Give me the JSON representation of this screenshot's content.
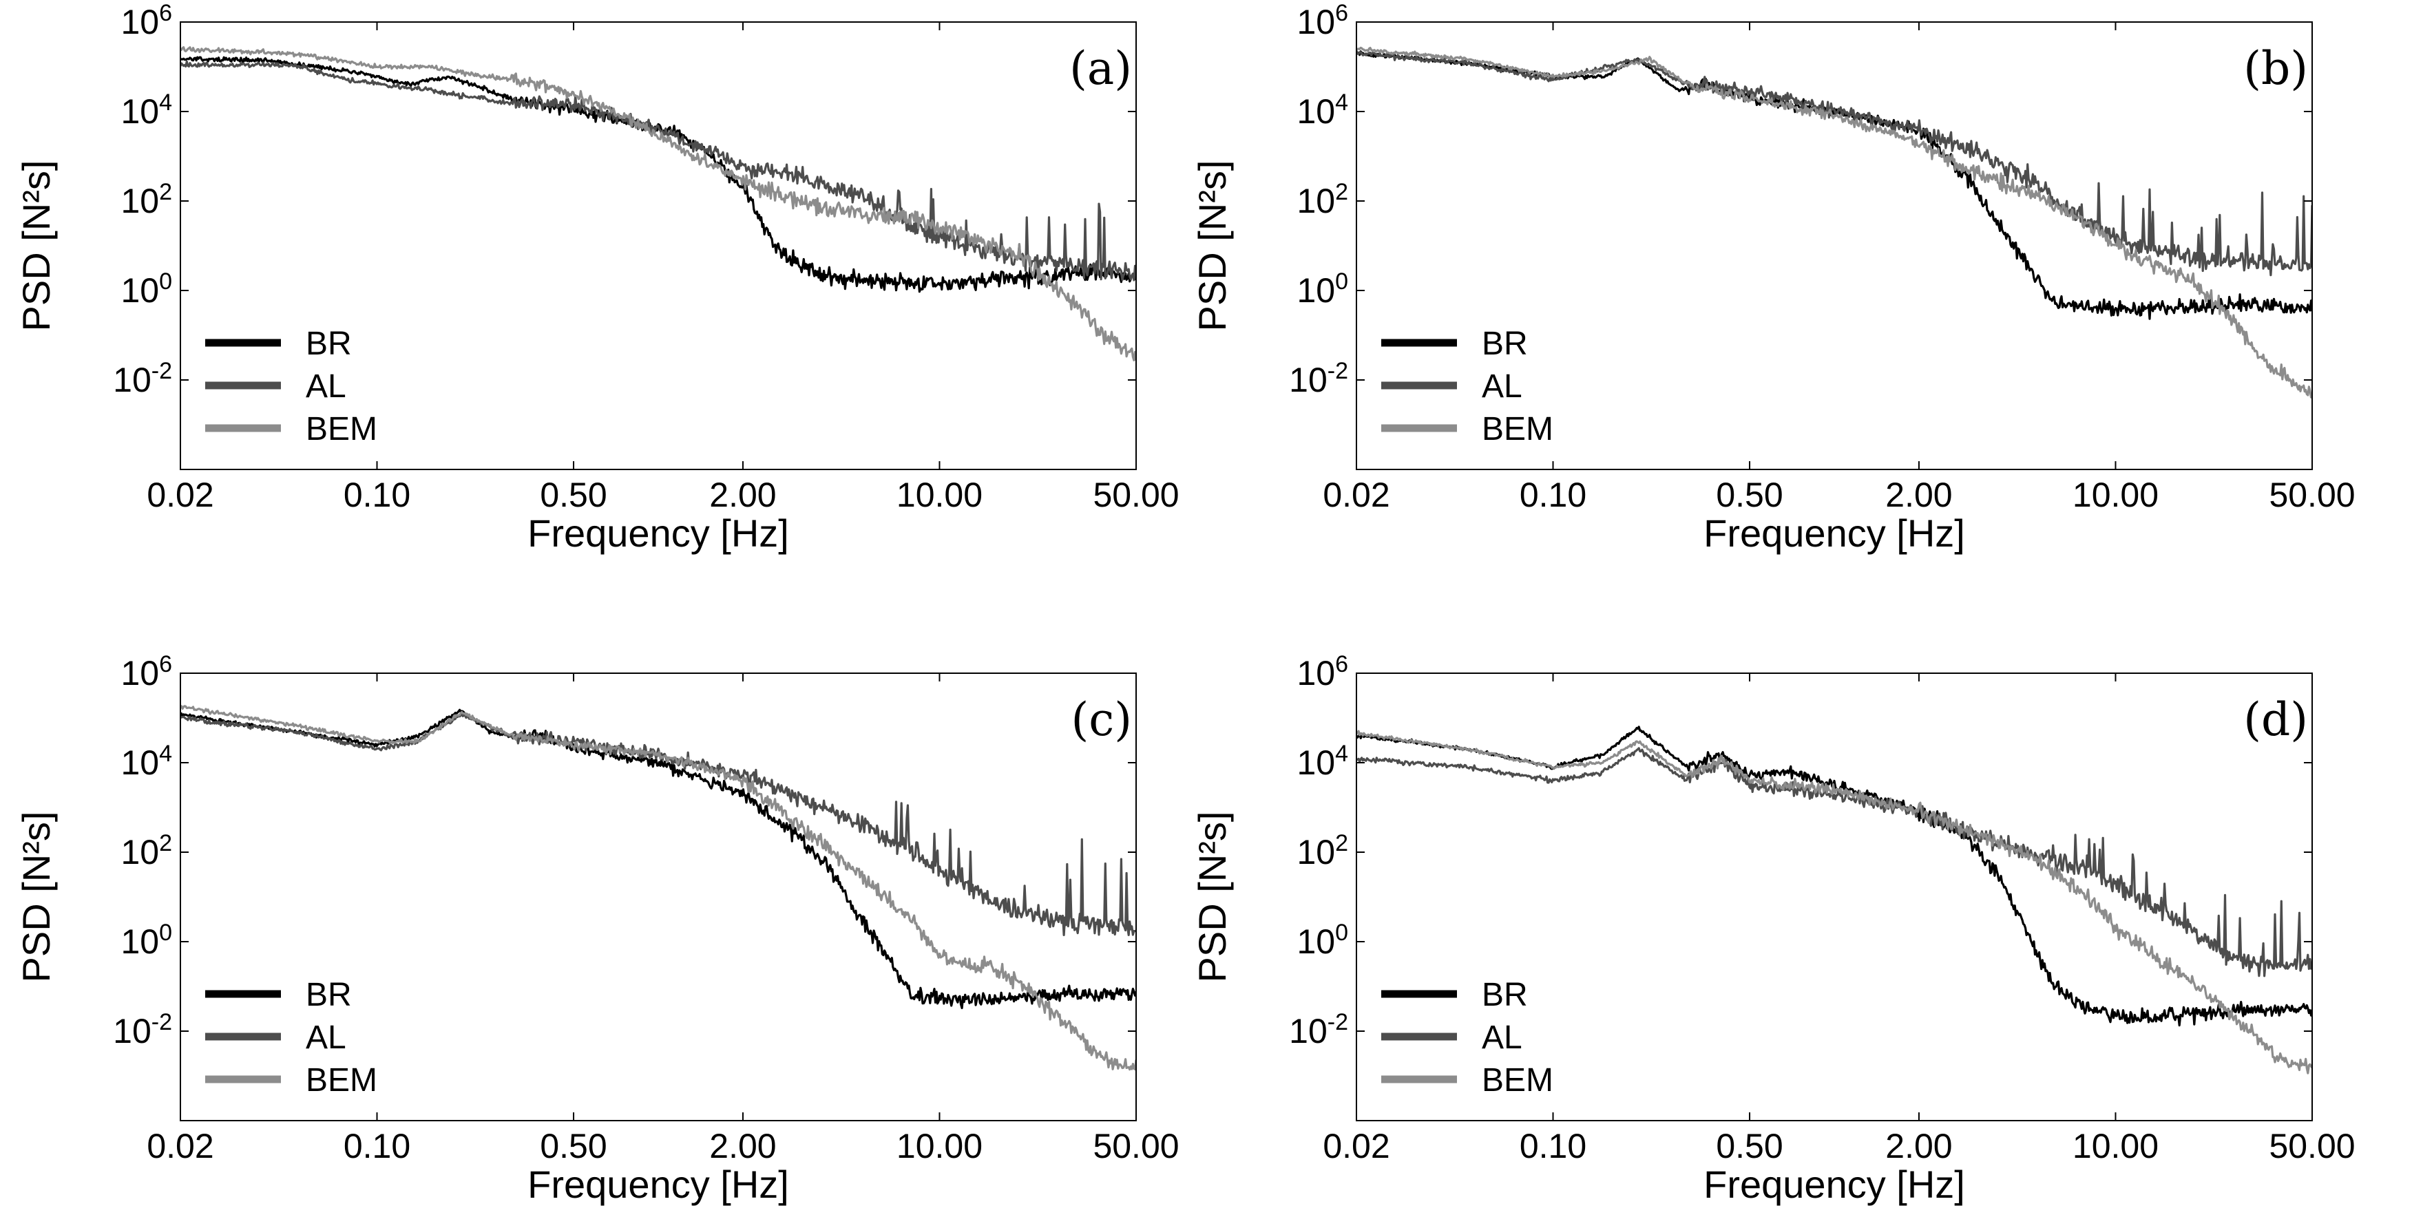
{
  "chart_data": [
    {
      "type": "line",
      "panel_label": "(a)",
      "xlabel": "Frequency [Hz]",
      "ylabel": "PSD [N²s]",
      "xscale": "log",
      "yscale": "log",
      "xlim": [
        0.02,
        50
      ],
      "ylim": [
        0.0001,
        1000000
      ],
      "x_ticks": [
        0.02,
        0.1,
        0.5,
        2,
        10,
        50
      ],
      "x_tick_labels": [
        "0.02",
        "0.10",
        "0.50",
        "2.00",
        "10.00",
        "50.00"
      ],
      "y_ticks": [
        0.01,
        1,
        100,
        10000,
        1000000
      ],
      "y_tick_base": "10",
      "y_tick_exponents": [
        "-2",
        "0",
        "2",
        "4",
        "6"
      ],
      "legend": {
        "position": "bottom-left"
      },
      "series": [
        {
          "name": "BR",
          "color": "#000000",
          "noise": 0.18,
          "spike_level": 0,
          "x": [
            0.02,
            0.04,
            0.08,
            0.13,
            0.18,
            0.3,
            0.5,
            0.8,
            1.2,
            1.6,
            2.0,
            2.3,
            2.6,
            3.0,
            4.0,
            6.0,
            10,
            20,
            35,
            50
          ],
          "y": [
            150000,
            140000,
            80000,
            40000,
            60000,
            20000,
            10000,
            6000,
            3000,
            800,
            200,
            40,
            10,
            5,
            2,
            1.5,
            1.5,
            2,
            2.5,
            2
          ]
        },
        {
          "name": "AL",
          "color": "#4d4d4d",
          "noise": 0.2,
          "spike_level": 2,
          "x": [
            0.02,
            0.05,
            0.08,
            0.15,
            0.3,
            0.5,
            1.0,
            2.0,
            3.0,
            5.0,
            8.0,
            12,
            20,
            35,
            50
          ],
          "y": [
            110000,
            110000,
            50000,
            30000,
            15000,
            15000,
            4000,
            600,
            400,
            150,
            30,
            10,
            5,
            3,
            2.5
          ]
        },
        {
          "name": "BEM",
          "color": "#8c8c8c",
          "noise": 0.18,
          "spike_level": 0,
          "x": [
            0.02,
            0.05,
            0.1,
            0.15,
            0.25,
            0.4,
            0.6,
            1.0,
            1.5,
            2.0,
            3.0,
            5.0,
            8.0,
            12,
            20,
            30,
            40,
            50
          ],
          "y": [
            250000,
            200000,
            100000,
            100000,
            60000,
            40000,
            15000,
            3000,
            700,
            300,
            100,
            50,
            40,
            20,
            5,
            0.5,
            0.08,
            0.03
          ]
        }
      ]
    },
    {
      "type": "line",
      "panel_label": "(b)",
      "xlabel": "Frequency [Hz]",
      "ylabel": "PSD [N²s]",
      "xscale": "log",
      "yscale": "log",
      "xlim": [
        0.02,
        50
      ],
      "ylim": [
        0.0001,
        1000000
      ],
      "x_ticks": [
        0.02,
        0.1,
        0.5,
        2,
        10,
        50
      ],
      "x_tick_labels": [
        "0.02",
        "0.10",
        "0.50",
        "2.00",
        "10.00",
        "50.00"
      ],
      "y_ticks": [
        0.01,
        1,
        100,
        10000,
        1000000
      ],
      "y_tick_base": "10",
      "y_tick_exponents": [
        "-2",
        "0",
        "2",
        "4",
        "6"
      ],
      "legend": {
        "position": "bottom-left"
      },
      "series": [
        {
          "name": "BR",
          "color": "#000000",
          "noise": 0.16,
          "spike_level": 0,
          "x": [
            0.02,
            0.05,
            0.1,
            0.15,
            0.2,
            0.28,
            0.35,
            0.5,
            1.0,
            2.0,
            3.0,
            4.0,
            5.0,
            6.0,
            8.0,
            15,
            30,
            50
          ],
          "y": [
            200000,
            120000,
            60000,
            60000,
            150000,
            30000,
            40000,
            20000,
            10000,
            4000,
            300,
            20,
            3,
            0.5,
            0.4,
            0.4,
            0.5,
            0.4
          ]
        },
        {
          "name": "AL",
          "color": "#4d4d4d",
          "noise": 0.2,
          "spike_level": 2.6,
          "x": [
            0.02,
            0.05,
            0.1,
            0.2,
            0.3,
            0.5,
            1.0,
            2.0,
            3.0,
            5.0,
            8.0,
            12,
            20,
            35,
            50
          ],
          "y": [
            200000,
            120000,
            50000,
            150000,
            40000,
            30000,
            10000,
            4000,
            1500,
            300,
            30,
            10,
            5,
            4,
            3
          ]
        },
        {
          "name": "BEM",
          "color": "#8c8c8c",
          "noise": 0.16,
          "spike_level": 0,
          "x": [
            0.02,
            0.05,
            0.1,
            0.15,
            0.22,
            0.3,
            0.5,
            1.0,
            2.0,
            3.0,
            5.0,
            8.0,
            12,
            18,
            25,
            35,
            50
          ],
          "y": [
            250000,
            150000,
            60000,
            80000,
            150000,
            40000,
            20000,
            8000,
            2000,
            500,
            150,
            30,
            5,
            2,
            0.3,
            0.02,
            0.005
          ]
        }
      ]
    },
    {
      "type": "line",
      "panel_label": "(c)",
      "xlabel": "Frequency [Hz]",
      "ylabel": "PSD [N²s]",
      "xscale": "log",
      "yscale": "log",
      "xlim": [
        0.02,
        50
      ],
      "ylim": [
        0.0001,
        1000000
      ],
      "x_ticks": [
        0.02,
        0.1,
        0.5,
        2,
        10,
        50
      ],
      "x_tick_labels": [
        "0.02",
        "0.10",
        "0.50",
        "2.00",
        "10.00",
        "50.00"
      ],
      "y_ticks": [
        0.01,
        1,
        100,
        10000,
        1000000
      ],
      "y_tick_base": "10",
      "y_tick_exponents": [
        "-2",
        "0",
        "2",
        "4",
        "6"
      ],
      "legend": {
        "position": "bottom-left"
      },
      "series": [
        {
          "name": "BR",
          "color": "#000000",
          "noise": 0.16,
          "spike_level": 0,
          "x": [
            0.02,
            0.05,
            0.1,
            0.14,
            0.2,
            0.25,
            0.3,
            0.4,
            0.5,
            1.0,
            2.0,
            3.0,
            4.0,
            5.0,
            6.0,
            7.0,
            8.0,
            12,
            20,
            30,
            50
          ],
          "y": [
            120000,
            50000,
            25000,
            40000,
            150000,
            50000,
            40000,
            40000,
            20000,
            10000,
            2000,
            300,
            50,
            5,
            1,
            0.2,
            0.06,
            0.05,
            0.06,
            0.07,
            0.07
          ]
        },
        {
          "name": "AL",
          "color": "#4d4d4d",
          "noise": 0.2,
          "spike_level": 2.4,
          "x": [
            0.02,
            0.05,
            0.1,
            0.14,
            0.2,
            0.3,
            0.5,
            1.0,
            2.0,
            3.0,
            5.0,
            8.0,
            12,
            18,
            25,
            35,
            50
          ],
          "y": [
            100000,
            50000,
            20000,
            30000,
            120000,
            40000,
            30000,
            15000,
            5000,
            2000,
            500,
            100,
            20,
            5,
            3,
            2.5,
            2
          ]
        },
        {
          "name": "BEM",
          "color": "#8c8c8c",
          "noise": 0.16,
          "spike_level": 0,
          "x": [
            0.02,
            0.05,
            0.1,
            0.14,
            0.2,
            0.3,
            0.5,
            1.0,
            2.0,
            3.0,
            5.0,
            8.0,
            10,
            12,
            15,
            20,
            30,
            40,
            50
          ],
          "y": [
            180000,
            70000,
            30000,
            30000,
            130000,
            40000,
            25000,
            15000,
            4000,
            500,
            40,
            3,
            0.5,
            0.3,
            0.3,
            0.1,
            0.01,
            0.002,
            0.0015
          ]
        }
      ]
    },
    {
      "type": "line",
      "panel_label": "(d)",
      "xlabel": "Frequency [Hz]",
      "ylabel": "PSD [N²s]",
      "xscale": "log",
      "yscale": "log",
      "xlim": [
        0.02,
        50
      ],
      "ylim": [
        0.0001,
        1000000
      ],
      "x_ticks": [
        0.02,
        0.1,
        0.5,
        2,
        10,
        50
      ],
      "x_tick_labels": [
        "0.02",
        "0.10",
        "0.50",
        "2.00",
        "10.00",
        "50.00"
      ],
      "y_ticks": [
        0.01,
        1,
        100,
        10000,
        1000000
      ],
      "y_tick_base": "10",
      "y_tick_exponents": [
        "-2",
        "0",
        "2",
        "4",
        "6"
      ],
      "legend": {
        "position": "bottom-left"
      },
      "series": [
        {
          "name": "BR",
          "color": "#000000",
          "noise": 0.16,
          "spike_level": 0,
          "x": [
            0.02,
            0.05,
            0.1,
            0.15,
            0.2,
            0.3,
            0.4,
            0.5,
            0.7,
            1.0,
            1.5,
            2.0,
            3.0,
            4.0,
            5.0,
            6.0,
            8.0,
            12,
            20,
            30,
            50
          ],
          "y": [
            40000,
            20000,
            8000,
            15000,
            60000,
            8000,
            15000,
            5000,
            6000,
            3000,
            1500,
            800,
            200,
            20,
            1,
            0.1,
            0.03,
            0.02,
            0.025,
            0.03,
            0.03
          ]
        },
        {
          "name": "AL",
          "color": "#4d4d4d",
          "noise": 0.2,
          "spike_level": 2.2,
          "x": [
            0.02,
            0.05,
            0.1,
            0.15,
            0.2,
            0.3,
            0.4,
            0.5,
            1.0,
            2.0,
            3.0,
            5.0,
            8.0,
            12,
            18,
            25,
            35,
            50
          ],
          "y": [
            12000,
            8000,
            4000,
            6000,
            20000,
            4000,
            10000,
            3000,
            2000,
            800,
            300,
            100,
            40,
            10,
            2,
            0.5,
            0.3,
            0.3
          ]
        },
        {
          "name": "BEM",
          "color": "#8c8c8c",
          "noise": 0.16,
          "spike_level": 0,
          "x": [
            0.02,
            0.05,
            0.1,
            0.15,
            0.2,
            0.3,
            0.4,
            0.5,
            1.0,
            2.0,
            3.0,
            5.0,
            8.0,
            10,
            12,
            15,
            20,
            30,
            40,
            50
          ],
          "y": [
            45000,
            20000,
            8000,
            10000,
            30000,
            5000,
            12000,
            4000,
            2500,
            800,
            300,
            80,
            10,
            2,
            1,
            0.3,
            0.1,
            0.01,
            0.002,
            0.0015
          ]
        }
      ]
    }
  ]
}
